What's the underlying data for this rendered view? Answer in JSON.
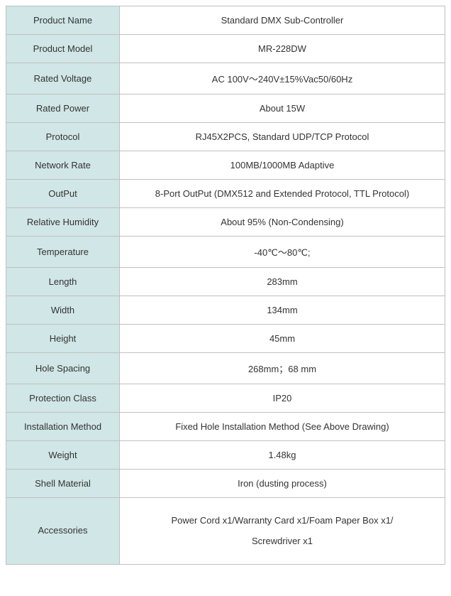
{
  "table": {
    "label_bg": "#d1e6e6",
    "value_bg": "#ffffff",
    "border_color": "#c0c0c0",
    "text_color": "#333333",
    "font_size": 13,
    "label_width": 160,
    "total_width": 620,
    "rows": [
      {
        "label": "Product Name",
        "value": "Standard DMX Sub-Controller"
      },
      {
        "label": "Product Model",
        "value": "MR-228DW"
      },
      {
        "label": "Rated Voltage",
        "value": "AC 100V～240V±15%Vac50/60Hz"
      },
      {
        "label": "Rated Power",
        "value": "About 15W"
      },
      {
        "label": "Protocol",
        "value": "RJ45X2PCS, Standard UDP/TCP Protocol"
      },
      {
        "label": "Network Rate",
        "value": "100MB/1000MB Adaptive"
      },
      {
        "label": "OutPut",
        "value": "8-Port OutPut (DMX512 and Extended Protocol, TTL Protocol)"
      },
      {
        "label": "Relative Humidity",
        "value": "About 95% (Non-Condensing)"
      },
      {
        "label": "Temperature",
        "value": "-40℃～80℃;"
      },
      {
        "label": "Length",
        "value": "283mm"
      },
      {
        "label": "Width",
        "value": "134mm"
      },
      {
        "label": "Height",
        "value": "45mm"
      },
      {
        "label": "Hole Spacing",
        "value": "268mm；68 mm"
      },
      {
        "label": "Protection Class",
        "value": "IP20"
      },
      {
        "label": "Installation Method",
        "value": "Fixed Hole Installation Method (See Above Drawing)"
      },
      {
        "label": "Weight",
        "value": "1.48kg"
      },
      {
        "label": "Shell Material",
        "value": "Iron (dusting process)"
      },
      {
        "label": "Accessories",
        "value": "Power Cord x1/Warranty Card x1/Foam Paper Box x1/\nScrewdriver x1",
        "tall": true
      }
    ]
  }
}
